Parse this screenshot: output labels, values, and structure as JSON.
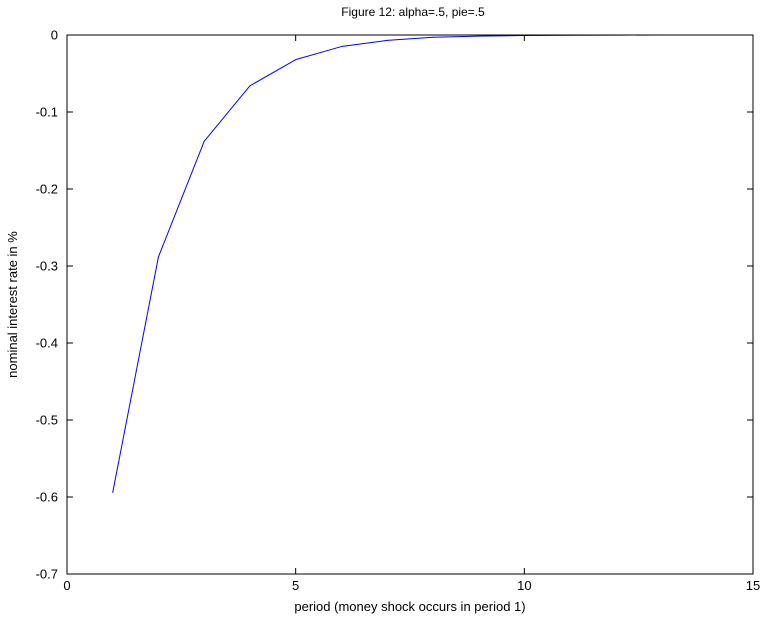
{
  "chart_data": {
    "type": "line",
    "title": "Figure 12: alpha=.5, pie=.5",
    "xlabel": "period (money shock occurs in period 1)",
    "ylabel": "nominal interest rate in %",
    "xlim": [
      0,
      15
    ],
    "ylim": [
      -0.7,
      0
    ],
    "xticks": [
      0,
      5,
      10,
      15
    ],
    "xtick_labels": [
      "0",
      "5",
      "10",
      "15"
    ],
    "yticks": [
      0,
      -0.1,
      -0.2,
      -0.3,
      -0.4,
      -0.5,
      -0.6,
      -0.7
    ],
    "ytick_labels": [
      "0",
      "-0.1",
      "-0.2",
      "-0.3",
      "-0.4",
      "-0.5",
      "-0.6",
      "-0.7"
    ],
    "grid": false,
    "series": [
      {
        "color": "#0000ff",
        "x": [
          1,
          2,
          3,
          4,
          5,
          6,
          7,
          8,
          9,
          10,
          11,
          12,
          13,
          14,
          15
        ],
        "y": [
          -0.594,
          -0.288,
          -0.138,
          -0.066,
          -0.032,
          -0.015,
          -0.007,
          -0.003,
          -0.0015,
          -0.0007,
          -0.0003,
          -0.0001,
          -5e-05,
          -2e-05,
          -1e-05
        ]
      }
    ]
  }
}
